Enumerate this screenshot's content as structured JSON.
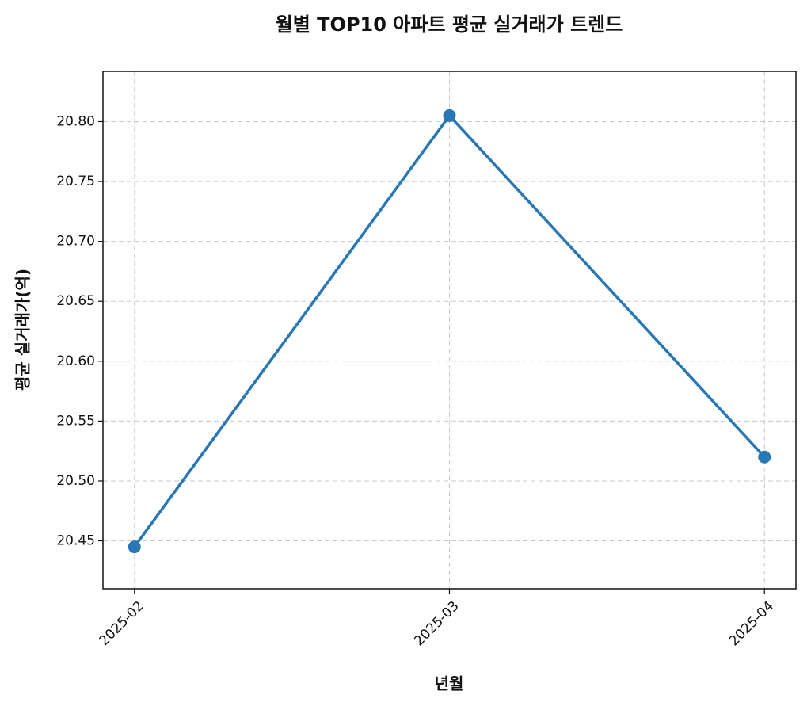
{
  "chart_data": {
    "type": "line",
    "title": "월별 TOP10 아파트 평균 실거래가 트렌드",
    "x_label": "년월",
    "y_label": "평균 실거래가(억)",
    "categories": [
      "2025-02",
      "2025-03",
      "2025-04"
    ],
    "series": [
      {
        "name": "평균 실거래가",
        "color": "#2878b5",
        "values": [
          20.445,
          20.805,
          20.52
        ]
      }
    ],
    "ylim": [
      20.41,
      20.842
    ],
    "yticks": [
      {
        "value": 20.45,
        "label": "20.45"
      },
      {
        "value": 20.5,
        "label": "20.50"
      },
      {
        "value": 20.55,
        "label": "20.55"
      },
      {
        "value": 20.6,
        "label": "20.60"
      },
      {
        "value": 20.65,
        "label": "20.65"
      },
      {
        "value": 20.7,
        "label": "20.70"
      },
      {
        "value": 20.75,
        "label": "20.75"
      },
      {
        "value": 20.8,
        "label": "20.80"
      }
    ],
    "grid": true
  }
}
